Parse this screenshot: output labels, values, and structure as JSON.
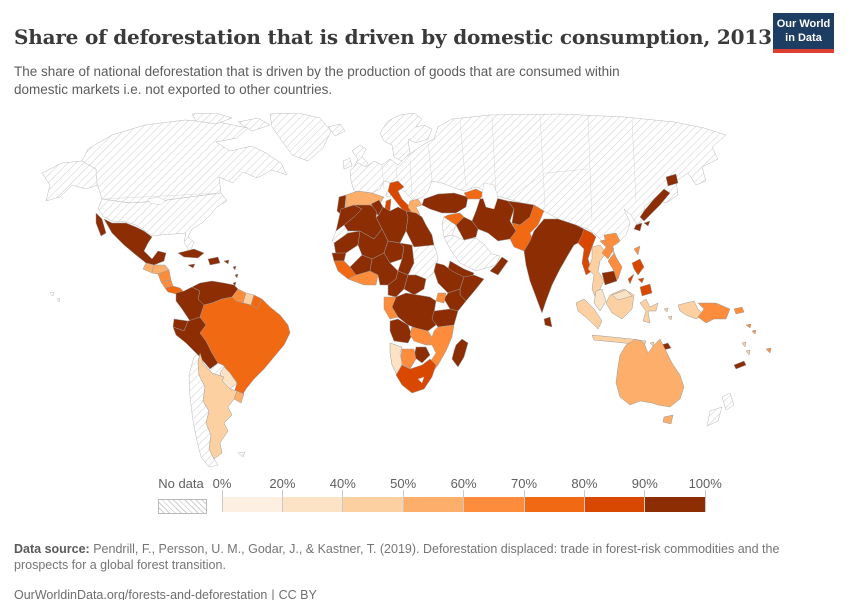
{
  "header": {
    "title": "Share of deforestation that is driven by domestic consumption, 2013",
    "subtitle": "The share of national deforestation that is driven by the production of goods that are consumed within domestic markets i.e. not exported to other countries.",
    "logo": {
      "line1": "Our World",
      "line2": "in Data",
      "bg_color": "#1d3d63",
      "accent_color": "#dc3e32"
    }
  },
  "legend": {
    "no_data_label": "No data",
    "tick_labels": [
      "0%",
      "20%",
      "40%",
      "50%",
      "60%",
      "70%",
      "80%",
      "90%",
      "100%"
    ],
    "bins": [
      {
        "range": "0-20%",
        "color": "#fdf0e2"
      },
      {
        "range": "20-40%",
        "color": "#fde3c5"
      },
      {
        "range": "40-50%",
        "color": "#fdd0a2"
      },
      {
        "range": "50-60%",
        "color": "#fdae6b"
      },
      {
        "range": "60-70%",
        "color": "#fd8d3c"
      },
      {
        "range": "70-80%",
        "color": "#f16913"
      },
      {
        "range": "80-90%",
        "color": "#d94801"
      },
      {
        "range": "90-100%",
        "color": "#8c2d04"
      }
    ],
    "no_data_border_color": "#b9b9b9"
  },
  "footer": {
    "source_label": "Data source:",
    "source_text": " Pendrill, F., Persson, U. M., Godar, J., & Kastner, T. (2019). Deforestation displaced: trade in forest-risk commodities and the prospects for a global forest transition.",
    "link": "OurWorldinData.org/forests-and-deforestation",
    "separator": "|",
    "license": "CC BY"
  },
  "map": {
    "border_color": "#9b9b9b",
    "no_data_border_color": "#b9b9b9",
    "ocean_color": "#ffffff",
    "countries": {
      "canada": "no_data",
      "usa": "no_data",
      "alaska": "no_data",
      "arctic_islands": "no_data",
      "greenland": "no_data",
      "hawaii": "no_data",
      "bolivia": "no_data",
      "chile": "no_data",
      "falkland_islands": "no_data",
      "iceland": "no_data",
      "united_kingdom": "no_data",
      "ireland": "no_data",
      "scandinavia": "no_data",
      "eurasia": "no_data",
      "corsica": "no_data",
      "levant": "no_data",
      "saudi_arabia": "no_data",
      "sudan": "no_data",
      "western_sahara": "no_data",
      "lesotho": "no_data",
      "new_zealand": "no_data",
      "mexico": 7,
      "guatemala": 3,
      "honduras": 3,
      "nicaragua": 4,
      "costa_rica": 4,
      "panama": 5,
      "cuba": 7,
      "jamaica": 7,
      "hispaniola": 7,
      "puerto_rico": 7,
      "lesser_antilles": 7,
      "colombia": 7,
      "venezuela": 7,
      "guyana": 4,
      "suriname": 2,
      "french_guiana": 5,
      "ecuador": 7,
      "peru": 7,
      "brazil": 5,
      "paraguay": 1,
      "uruguay": 3,
      "argentina": 2,
      "portugal": 7,
      "spain": 3,
      "italy": 6,
      "greece": 3,
      "turkey": 7,
      "cyprus": 5,
      "caucasus": 5,
      "syria": 5,
      "iraq": 7,
      "iran": 7,
      "afghanistan": 7,
      "pakistan": 5,
      "yemen": 7,
      "oman": 7,
      "india": 7,
      "sri_lanka": 7,
      "myanmar": 6,
      "thailand": 2,
      "laos": 4,
      "vietnam": 4,
      "cambodia": 7,
      "malaysia": 1,
      "indonesia": 2,
      "timor": 7,
      "philippines": 6,
      "taiwan": 4,
      "japan": 7,
      "papua_new_guinea": 4,
      "solomon_islands": 4,
      "vanuatu": 2,
      "new_caledonia": 7,
      "fiji": 4,
      "australia": 3,
      "morocco": 7,
      "algeria": 7,
      "tunisia": 7,
      "libya": 7,
      "egypt": 7,
      "mauritania": 7,
      "mali": 7,
      "niger": 7,
      "chad": 7,
      "senegal": 7,
      "guinea_coast": 5,
      "ivory_ghana": 4,
      "burkina_faso": 7,
      "nigeria": 7,
      "cameroon": 7,
      "central_african_republic": 7,
      "ethiopia": 7,
      "somalia": 7,
      "kenya": 7,
      "uganda": 4,
      "drc": 7,
      "congo_gabon": 4,
      "angola": 7,
      "tanzania": 7,
      "zambia": 4,
      "mozambique": 4,
      "zimbabwe": 7,
      "botswana": 4,
      "namibia": 1,
      "south_africa": 6,
      "madagascar": 7
    }
  }
}
